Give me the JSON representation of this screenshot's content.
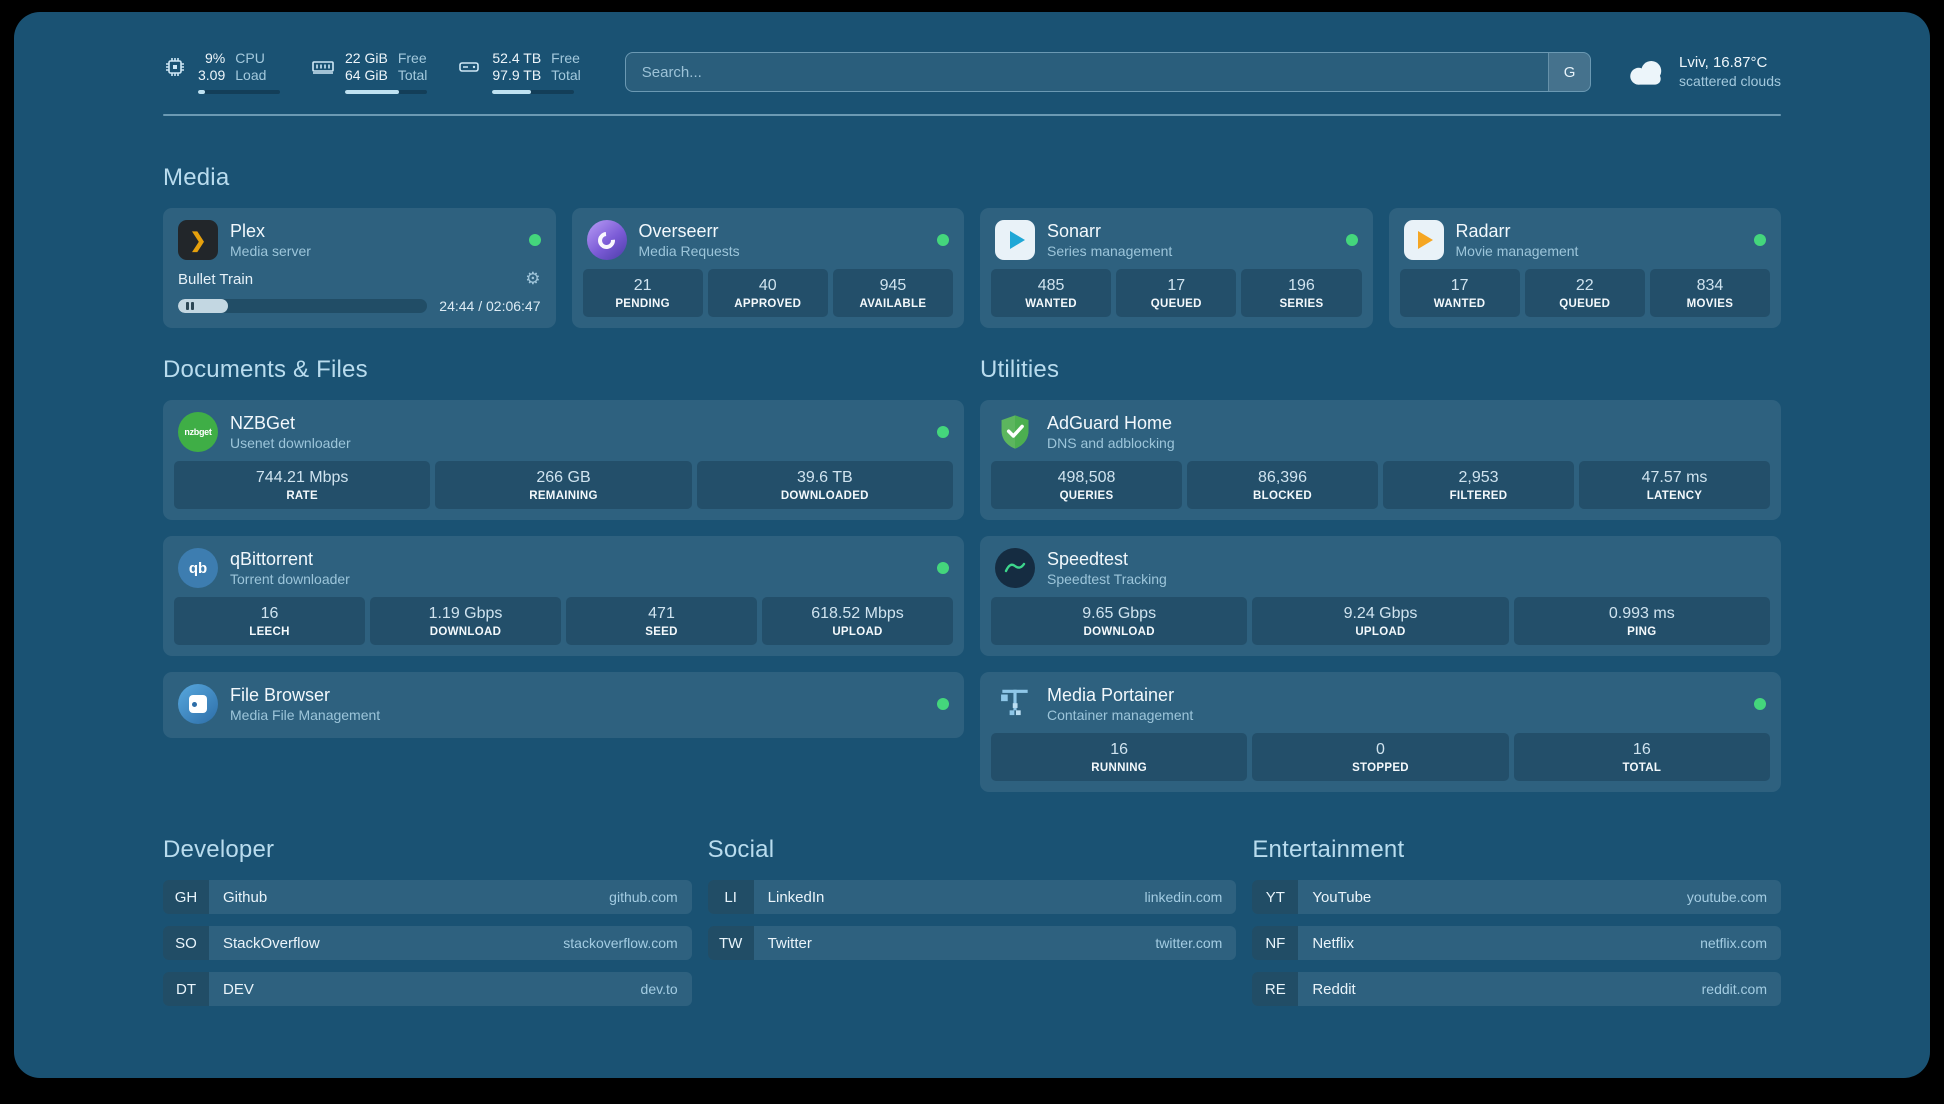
{
  "topbar": {
    "cpu": {
      "value": "9%",
      "sub_value": "3.09",
      "label": "CPU",
      "sub_label": "Load",
      "bar_pct": 9
    },
    "memory": {
      "value": "22 GiB",
      "sub_value": "64 GiB",
      "label": "Free",
      "sub_label": "Total",
      "bar_pct": 66
    },
    "disk": {
      "value": "52.4 TB",
      "sub_value": "97.9 TB",
      "label": "Free",
      "sub_label": "Total",
      "bar_pct": 47
    },
    "search": {
      "placeholder": "Search...",
      "button": "G"
    },
    "weather": {
      "location": "Lviv, 16.87°C",
      "condition": "scattered clouds"
    }
  },
  "glyphs": {
    "gear": "⚙",
    "plex_chevron": "❯"
  },
  "sections": {
    "media": {
      "title": "Media",
      "plex": {
        "title": "Plex",
        "subtitle": "Media server",
        "now_playing": "Bullet Train",
        "time": "24:44 / 02:06:47",
        "progress_pct": 20
      },
      "overseerr": {
        "title": "Overseerr",
        "subtitle": "Media Requests",
        "stats": [
          {
            "value": "21",
            "label": "PENDING"
          },
          {
            "value": "40",
            "label": "APPROVED"
          },
          {
            "value": "945",
            "label": "AVAILABLE"
          }
        ]
      },
      "sonarr": {
        "title": "Sonarr",
        "subtitle": "Series management",
        "stats": [
          {
            "value": "485",
            "label": "WANTED"
          },
          {
            "value": "17",
            "label": "QUEUED"
          },
          {
            "value": "196",
            "label": "SERIES"
          }
        ]
      },
      "radarr": {
        "title": "Radarr",
        "subtitle": "Movie management",
        "stats": [
          {
            "value": "17",
            "label": "WANTED"
          },
          {
            "value": "22",
            "label": "QUEUED"
          },
          {
            "value": "834",
            "label": "MOVIES"
          }
        ]
      }
    },
    "documents": {
      "title": "Documents & Files",
      "nzbget": {
        "title": "NZBGet",
        "subtitle": "Usenet downloader",
        "icon_text": "nzbget",
        "stats": [
          {
            "value": "744.21 Mbps",
            "label": "RATE"
          },
          {
            "value": "266 GB",
            "label": "REMAINING"
          },
          {
            "value": "39.6 TB",
            "label": "DOWNLOADED"
          }
        ]
      },
      "qbittorrent": {
        "title": "qBittorrent",
        "subtitle": "Torrent downloader",
        "icon_text": "qb",
        "stats": [
          {
            "value": "16",
            "label": "LEECH"
          },
          {
            "value": "1.19 Gbps",
            "label": "DOWNLOAD"
          },
          {
            "value": "471",
            "label": "SEED"
          },
          {
            "value": "618.52 Mbps",
            "label": "UPLOAD"
          }
        ]
      },
      "filebrowser": {
        "title": "File Browser",
        "subtitle": "Media File Management"
      }
    },
    "utilities": {
      "title": "Utilities",
      "adguard": {
        "title": "AdGuard Home",
        "subtitle": "DNS and adblocking",
        "stats": [
          {
            "value": "498,508",
            "label": "QUERIES"
          },
          {
            "value": "86,396",
            "label": "BLOCKED"
          },
          {
            "value": "2,953",
            "label": "FILTERED"
          },
          {
            "value": "47.57 ms",
            "label": "LATENCY"
          }
        ]
      },
      "speedtest": {
        "title": "Speedtest",
        "subtitle": "Speedtest Tracking",
        "stats": [
          {
            "value": "9.65 Gbps",
            "label": "DOWNLOAD"
          },
          {
            "value": "9.24 Gbps",
            "label": "UPLOAD"
          },
          {
            "value": "0.993 ms",
            "label": "PING"
          }
        ]
      },
      "portainer": {
        "title": "Media Portainer",
        "subtitle": "Container management",
        "stats": [
          {
            "value": "16",
            "label": "RUNNING"
          },
          {
            "value": "0",
            "label": "STOPPED"
          },
          {
            "value": "16",
            "label": "TOTAL"
          }
        ]
      }
    },
    "bookmarks": {
      "developer": {
        "title": "Developer",
        "items": [
          {
            "abbr": "GH",
            "name": "Github",
            "url": "github.com"
          },
          {
            "abbr": "SO",
            "name": "StackOverflow",
            "url": "stackoverflow.com"
          },
          {
            "abbr": "DT",
            "name": "DEV",
            "url": "dev.to"
          }
        ]
      },
      "social": {
        "title": "Social",
        "items": [
          {
            "abbr": "LI",
            "name": "LinkedIn",
            "url": "linkedin.com"
          },
          {
            "abbr": "TW",
            "name": "Twitter",
            "url": "twitter.com"
          }
        ]
      },
      "entertainment": {
        "title": "Entertainment",
        "items": [
          {
            "abbr": "YT",
            "name": "YouTube",
            "url": "youtube.com"
          },
          {
            "abbr": "NF",
            "name": "Netflix",
            "url": "netflix.com"
          },
          {
            "abbr": "RE",
            "name": "Reddit",
            "url": "reddit.com"
          }
        ]
      }
    }
  },
  "colors": {
    "status_online": "#44d67c",
    "page_background": "#1a5273",
    "accent_green": "#3fae46"
  }
}
